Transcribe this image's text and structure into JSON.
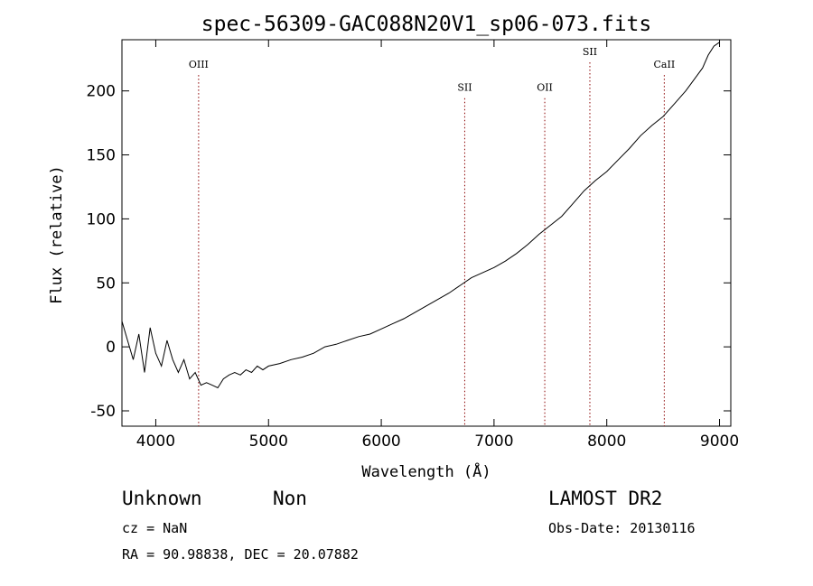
{
  "chart_data": {
    "type": "line",
    "title": "spec-56309-GAC088N20V1_sp06-073.fits",
    "xlabel": "Wavelength (Å)",
    "ylabel": "Flux (relative)",
    "xlim": [
      3700,
      9100
    ],
    "ylim": [
      -62,
      240
    ],
    "xticks": [
      4000,
      5000,
      6000,
      7000,
      8000,
      9000
    ],
    "yticks": [
      -50,
      0,
      50,
      100,
      150,
      200
    ],
    "line_color": "#000000",
    "marker_color": "#8b0000",
    "spectral_lines": [
      {
        "name": "OIII",
        "wavelength": 4380,
        "label_y": 218
      },
      {
        "name": "SII",
        "wavelength": 6740,
        "label_y": 200
      },
      {
        "name": "OII",
        "wavelength": 7450,
        "label_y": 200
      },
      {
        "name": "SII",
        "wavelength": 7850,
        "label_y": 228
      },
      {
        "name": "CaII",
        "wavelength": 8510,
        "label_y": 218
      }
    ],
    "series": [
      {
        "x": [
          3700,
          3750,
          3800,
          3850,
          3900,
          3950,
          4000,
          4050,
          4100,
          4150,
          4200,
          4250,
          4300,
          4350,
          4400,
          4450,
          4500,
          4550,
          4600,
          4650,
          4700,
          4750,
          4800,
          4850,
          4900,
          4950,
          5000,
          5100,
          5200,
          5300,
          5400,
          5500,
          5600,
          5700,
          5800,
          5900,
          6000,
          6100,
          6200,
          6300,
          6400,
          6500,
          6600,
          6700,
          6800,
          6900,
          7000,
          7100,
          7200,
          7300,
          7400,
          7500,
          7600,
          7700,
          7800,
          7900,
          8000,
          8100,
          8200,
          8300,
          8400,
          8500,
          8600,
          8700,
          8800,
          8850,
          8900,
          8950,
          9000
        ],
        "y": [
          20,
          5,
          -10,
          10,
          -20,
          15,
          -5,
          -15,
          5,
          -10,
          -20,
          -10,
          -25,
          -20,
          -30,
          -28,
          -30,
          -32,
          -25,
          -22,
          -20,
          -22,
          -18,
          -20,
          -15,
          -18,
          -15,
          -13,
          -10,
          -8,
          -5,
          0,
          2,
          5,
          8,
          10,
          14,
          18,
          22,
          27,
          32,
          37,
          42,
          48,
          54,
          58,
          62,
          67,
          73,
          80,
          88,
          95,
          102,
          112,
          122,
          130,
          137,
          146,
          155,
          165,
          173,
          180,
          190,
          200,
          212,
          218,
          228,
          235,
          238
        ]
      }
    ],
    "legend": "none",
    "grid": false
  },
  "info": {
    "object_class": "Unknown",
    "subclass": "Non",
    "survey": "LAMOST DR2",
    "redshift_text": "cz = NaN",
    "obs_date_text": "Obs-Date: 20130116",
    "coords_text": "RA =  90.98838, DEC =  20.07882"
  }
}
